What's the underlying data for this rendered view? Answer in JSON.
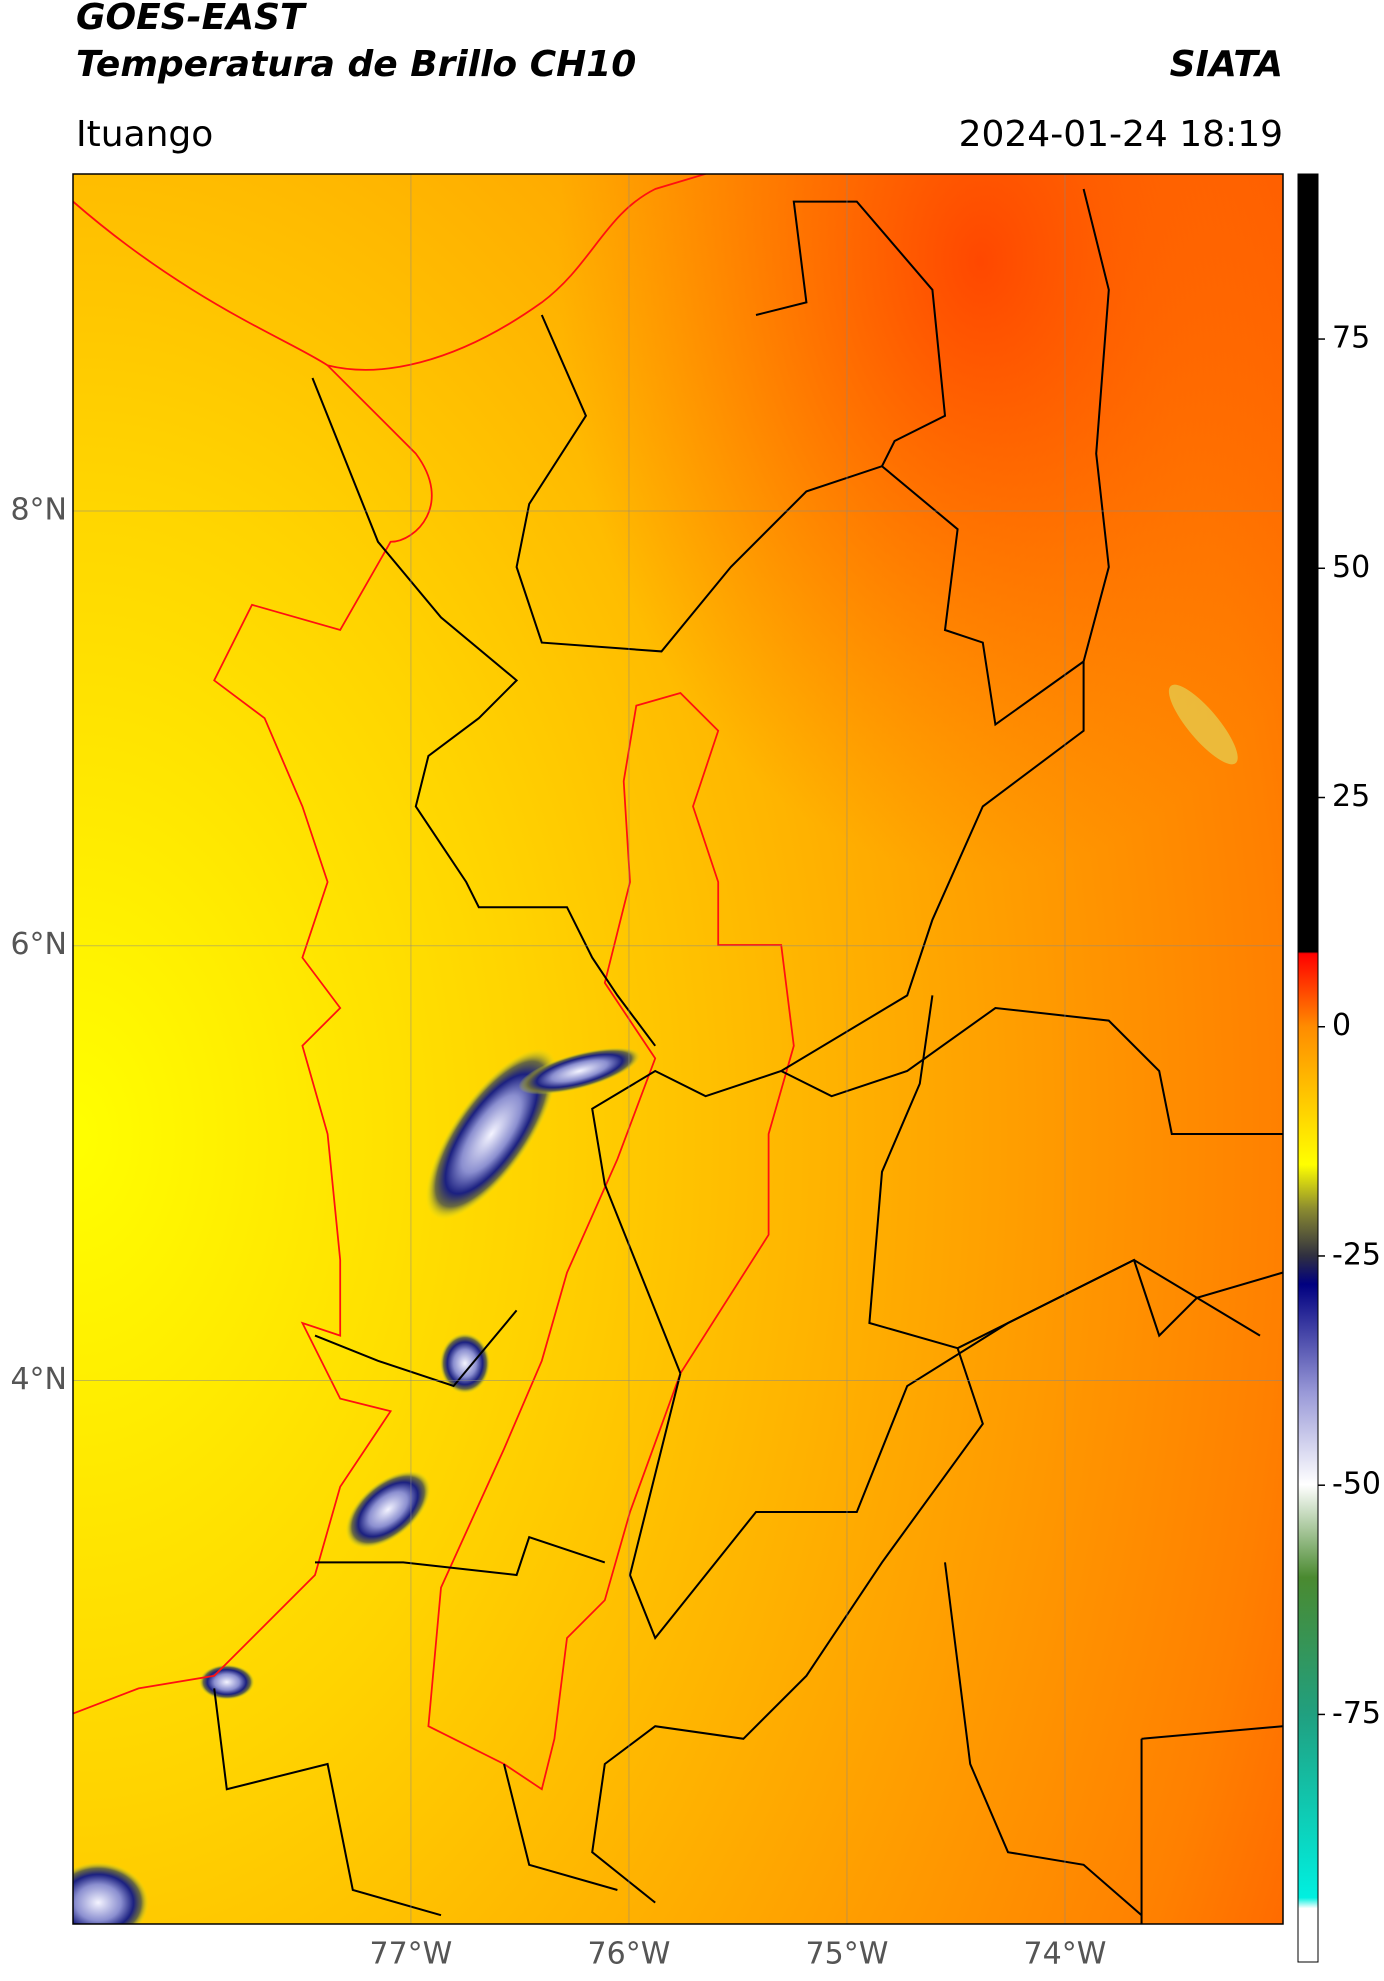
{
  "chart_data": {
    "type": "map",
    "title": "GOES-EAST",
    "subtitle": "Temperatura de Brillo CH10",
    "source": "SIATA",
    "location": "Ituango",
    "datetime": "2024-01-24 18:19",
    "xlim": [
      -78.55,
      -73.0
    ],
    "ylim": [
      1.5,
      9.55
    ],
    "xticks": [
      {
        "value": -77,
        "label": "77°W"
      },
      {
        "value": -76,
        "label": "76°W"
      },
      {
        "value": -75,
        "label": "75°W"
      },
      {
        "value": -74,
        "label": "74°W"
      }
    ],
    "yticks": [
      {
        "value": 8,
        "label": "8°N"
      },
      {
        "value": 6,
        "label": "6°N"
      },
      {
        "value": 4,
        "label": "4°N"
      }
    ],
    "grid": true,
    "colorbar": {
      "clim": [
        -102,
        93
      ],
      "ticks": [
        75,
        50,
        25,
        0,
        -25,
        -50,
        -75
      ]
    }
  }
}
